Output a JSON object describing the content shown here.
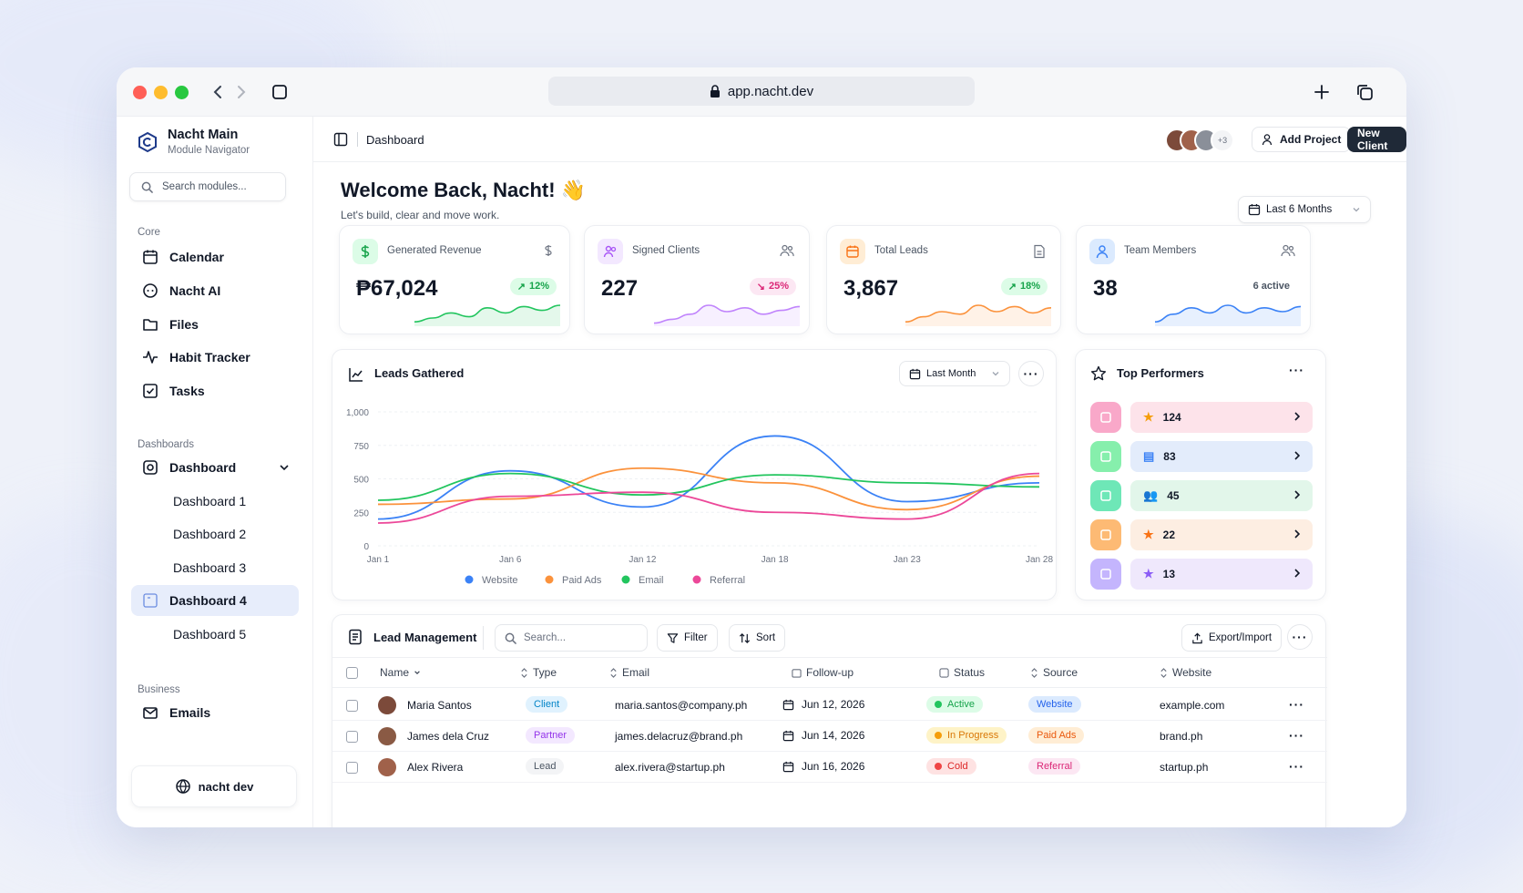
{
  "browser": {
    "url": "app.nacht.dev"
  },
  "sidebar": {
    "workspace_title": "Nacht Main",
    "workspace_subtitle": "Module Navigator",
    "search_placeholder": "Search modules...",
    "core_label": "Core",
    "core_items": [
      {
        "label": "Calendar",
        "icon": "calendar-icon"
      },
      {
        "label": "Nacht AI",
        "icon": "ai-icon"
      },
      {
        "label": "Files",
        "icon": "folder-icon"
      },
      {
        "label": "Habit Tracker",
        "icon": "activity-icon"
      },
      {
        "label": "Tasks",
        "icon": "checkbox-icon"
      }
    ],
    "dashboards_label": "Dashboards",
    "dashboard_parent": "Dashboard",
    "dashboard_items": [
      "Dashboard 1",
      "Dashboard 2",
      "Dashboard 3",
      "Dashboard 4",
      "Dashboard 5"
    ],
    "active_dashboard": "Dashboard 4",
    "business_label": "Business",
    "business_items": [
      {
        "label": "Emails",
        "icon": "mail-icon"
      }
    ],
    "footer": "nacht dev"
  },
  "header": {
    "breadcrumb": "Dashboard",
    "avatar_extra": "+3",
    "add_project": "Add Project",
    "new_client": "New Client"
  },
  "welcome": {
    "title": "Welcome Back, Nacht! 👋",
    "subtitle": "Let's build, clear and move work.",
    "range": "Last 6 Months"
  },
  "stats": [
    {
      "title": "Generated Revenue",
      "value": "₱67,024",
      "badge": "12%",
      "trend": "up",
      "color": "#22c55e"
    },
    {
      "title": "Signed Clients",
      "value": "227",
      "badge": "25%",
      "trend": "down",
      "color": "#c084fc"
    },
    {
      "title": "Total Leads",
      "value": "3,867",
      "badge": "18%",
      "trend": "up",
      "color": "#fb923c"
    },
    {
      "title": "Team Members",
      "value": "38",
      "badge": "6 active",
      "trend": "none",
      "color": "#3b82f6"
    }
  ],
  "leads_chart": {
    "title": "Leads Gathered",
    "range": "Last Month"
  },
  "chart_data": {
    "type": "line",
    "x": [
      "Jan 1",
      "Jan 6",
      "Jan 12",
      "Jan 18",
      "Jan 23",
      "Jan 28"
    ],
    "yticks": [
      "1,000",
      "750",
      "500",
      "250",
      "0"
    ],
    "ylim": [
      0,
      1000
    ],
    "series": [
      {
        "name": "Website",
        "color": "#3b82f6",
        "values": [
          200,
          560,
          290,
          820,
          330,
          470
        ]
      },
      {
        "name": "Paid Ads",
        "color": "#fb923c",
        "values": [
          310,
          350,
          580,
          470,
          270,
          520
        ]
      },
      {
        "name": "Email",
        "color": "#22c55e",
        "values": [
          340,
          540,
          380,
          530,
          470,
          440
        ]
      },
      {
        "name": "Referral",
        "color": "#ec4899",
        "values": [
          170,
          370,
          400,
          250,
          200,
          540
        ]
      }
    ],
    "legend_position": "bottom"
  },
  "performers": {
    "title": "Top Performers",
    "items": [
      {
        "value": "124",
        "bar": "#fde3ea",
        "icon_bg": "#f9a8c9",
        "glyph": "★",
        "gcolor": "#f59e0b"
      },
      {
        "value": "83",
        "bar": "#e3ecfb",
        "icon_bg": "#86efac",
        "glyph": "▤",
        "gcolor": "#3b82f6"
      },
      {
        "value": "45",
        "bar": "#e2f6ea",
        "icon_bg": "#6ee7b7",
        "glyph": "👥",
        "gcolor": "#22c55e"
      },
      {
        "value": "22",
        "bar": "#fdeee2",
        "icon_bg": "#fdba74",
        "glyph": "★",
        "gcolor": "#f97316"
      },
      {
        "value": "13",
        "bar": "#efe8fc",
        "icon_bg": "#c4b5fd",
        "glyph": "★",
        "gcolor": "#8b5cf6"
      }
    ]
  },
  "leads_table": {
    "title": "Lead Management",
    "search_placeholder": "Search...",
    "filter": "Filter",
    "sort": "Sort",
    "export": "Export/Import",
    "columns": [
      "Name",
      "Type",
      "Email",
      "Follow-up",
      "Status",
      "Source",
      "Website"
    ],
    "rows": [
      {
        "name": "Maria Santos",
        "type": "Client",
        "email": "maria.santos@company.ph",
        "followup": "Jun 12, 2026",
        "status": "Active",
        "source": "Website",
        "website": "example.com"
      },
      {
        "name": "James dela Cruz",
        "type": "Partner",
        "email": "james.delacruz@brand.ph",
        "followup": "Jun 14, 2026",
        "status": "In Progress",
        "source": "Paid Ads",
        "website": "brand.ph"
      },
      {
        "name": "Alex Rivera",
        "type": "Lead",
        "email": "alex.rivera@startup.ph",
        "followup": "Jun 16, 2026",
        "status": "Cold",
        "source": "Referral",
        "website": "startup.ph"
      }
    ]
  }
}
